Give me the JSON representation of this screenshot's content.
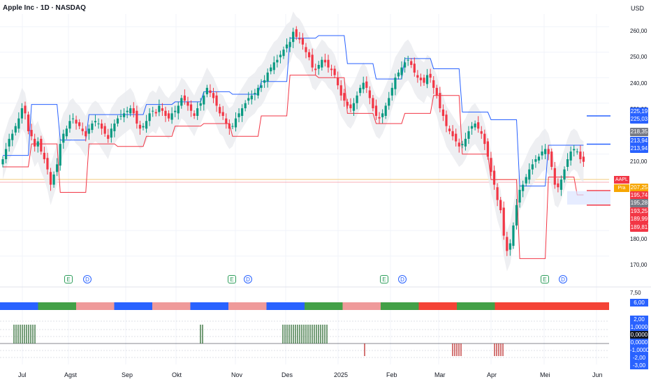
{
  "header": {
    "title": "Apple Inc · 1D · NASDAQ",
    "currency": "USD"
  },
  "price_axis": {
    "ticks": [
      "260,00",
      "250,00",
      "240,00",
      "230,00",
      "210,00",
      "200,00",
      "180,00",
      "170,00"
    ],
    "tags": [
      {
        "text": "225,19",
        "color": "#2962ff"
      },
      {
        "text": "225,03",
        "color": "#2962ff"
      },
      {
        "text": "218,35",
        "color": "#787b86"
      },
      {
        "text": "213,94",
        "color": "#2962ff"
      },
      {
        "text": "213,94",
        "color": "#2962ff"
      },
      {
        "text": "207,25",
        "color": "#f7a600"
      },
      {
        "text": "195,74",
        "color": "#f23645"
      },
      {
        "text": "195,28",
        "color": "#787b86"
      },
      {
        "text": "193,25",
        "color": "#f23645"
      },
      {
        "text": "189,99",
        "color": "#f23645"
      },
      {
        "text": "189,81",
        "color": "#f23645"
      }
    ],
    "symbol_tag": "AAPL",
    "pre_tag": "Pra"
  },
  "indicator_axis": {
    "ticks": [
      "7,50",
      "5,00",
      "2,00",
      "1,0000",
      "0,0000",
      "-1,0000",
      "-2,00",
      "-3,00"
    ],
    "tags": [
      {
        "text": "6,00",
        "color": "#2962ff"
      },
      {
        "text": "2,00",
        "color": "#2962ff"
      },
      {
        "text": "1,0000",
        "color": "#2962ff"
      },
      {
        "text": "0,0000",
        "color": "#131722"
      },
      {
        "text": "0,0000",
        "color": "#2962ff"
      },
      {
        "text": "-1,0000",
        "color": "#2962ff"
      },
      {
        "text": "-2,00",
        "color": "#2962ff"
      },
      {
        "text": "-3,00",
        "color": "#2962ff"
      }
    ]
  },
  "time_axis": [
    "Jul",
    "Agst",
    "Sep",
    "Okt",
    "Nov",
    "Des",
    "2025",
    "Feb",
    "Mar",
    "Apr",
    "Mei",
    "Jun"
  ],
  "events": [
    {
      "type": "E"
    },
    {
      "type": "D"
    },
    {
      "type": "E"
    },
    {
      "type": "D"
    },
    {
      "type": "E"
    },
    {
      "type": "D"
    },
    {
      "type": "E"
    },
    {
      "type": "D"
    }
  ],
  "colors": {
    "up": "#089981",
    "down": "#f23645",
    "upper_band": "#2962ff",
    "lower_band": "#f23645",
    "cloud": "#e8eaee",
    "trend_up": "#2962ff",
    "trend_bull": "#43a047",
    "trend_bear": "#ef9a9a",
    "trend_strong_bear": "#f44336"
  },
  "chart_data": {
    "type": "candlestick",
    "title": "Apple Inc · 1D · NASDAQ",
    "ylim": [
      165,
      265
    ],
    "y_ticks": [
      170,
      180,
      200,
      210,
      230,
      240,
      250,
      260
    ],
    "current_price": 207.25,
    "x_labels": [
      "Jul",
      "Agst",
      "Sep",
      "Okt",
      "Nov",
      "Des",
      "2025",
      "Feb",
      "Mar",
      "Apr",
      "Mei",
      "Jun"
    ],
    "closes": [
      208,
      212,
      216,
      218,
      221,
      224,
      228,
      226,
      219,
      217,
      213,
      215,
      211,
      208,
      204,
      198,
      202,
      206,
      214,
      218,
      220,
      223,
      224,
      222,
      221,
      219,
      217,
      220,
      222,
      223,
      222,
      220,
      218,
      216,
      220,
      222,
      224,
      225,
      226,
      227,
      228,
      226,
      222,
      220,
      221,
      223,
      226,
      227,
      226,
      229,
      227,
      225,
      224,
      226,
      227,
      229,
      232,
      231,
      229,
      227,
      225,
      228,
      230,
      233,
      236,
      234,
      232,
      229,
      226,
      225,
      222,
      220,
      221,
      224,
      226,
      228,
      230,
      232,
      233,
      234,
      236,
      237,
      239,
      242,
      244,
      246,
      247,
      249,
      251,
      253,
      254,
      258,
      256,
      255,
      253,
      250,
      248,
      244,
      243,
      245,
      247,
      246,
      244,
      243,
      241,
      237,
      233,
      231,
      229,
      228,
      230,
      233,
      236,
      238,
      236,
      232,
      228,
      225,
      224,
      226,
      229,
      232,
      236,
      240,
      242,
      244,
      246,
      247,
      245,
      242,
      240,
      239,
      238,
      241,
      240,
      236,
      233,
      228,
      225,
      221,
      219,
      217,
      215,
      213,
      214,
      216,
      219,
      221,
      222,
      220,
      218,
      214,
      209,
      203,
      198,
      192,
      188,
      178,
      172,
      175,
      182,
      190,
      196,
      198,
      201,
      204,
      206,
      208,
      209,
      211,
      212,
      210,
      205,
      198,
      197,
      200,
      204,
      208,
      211,
      212,
      211,
      208,
      207
    ],
    "indicator_panel": {
      "trend_bar_states": [
        "up",
        "bull",
        "bear",
        "up",
        "bear",
        "up",
        "bear",
        "up",
        "bull",
        "bear",
        "bull",
        "strong_bear",
        "bull",
        "strong_bear",
        "strong_bear",
        "strong_bear"
      ],
      "scale": [
        -3,
        7.5
      ]
    }
  }
}
